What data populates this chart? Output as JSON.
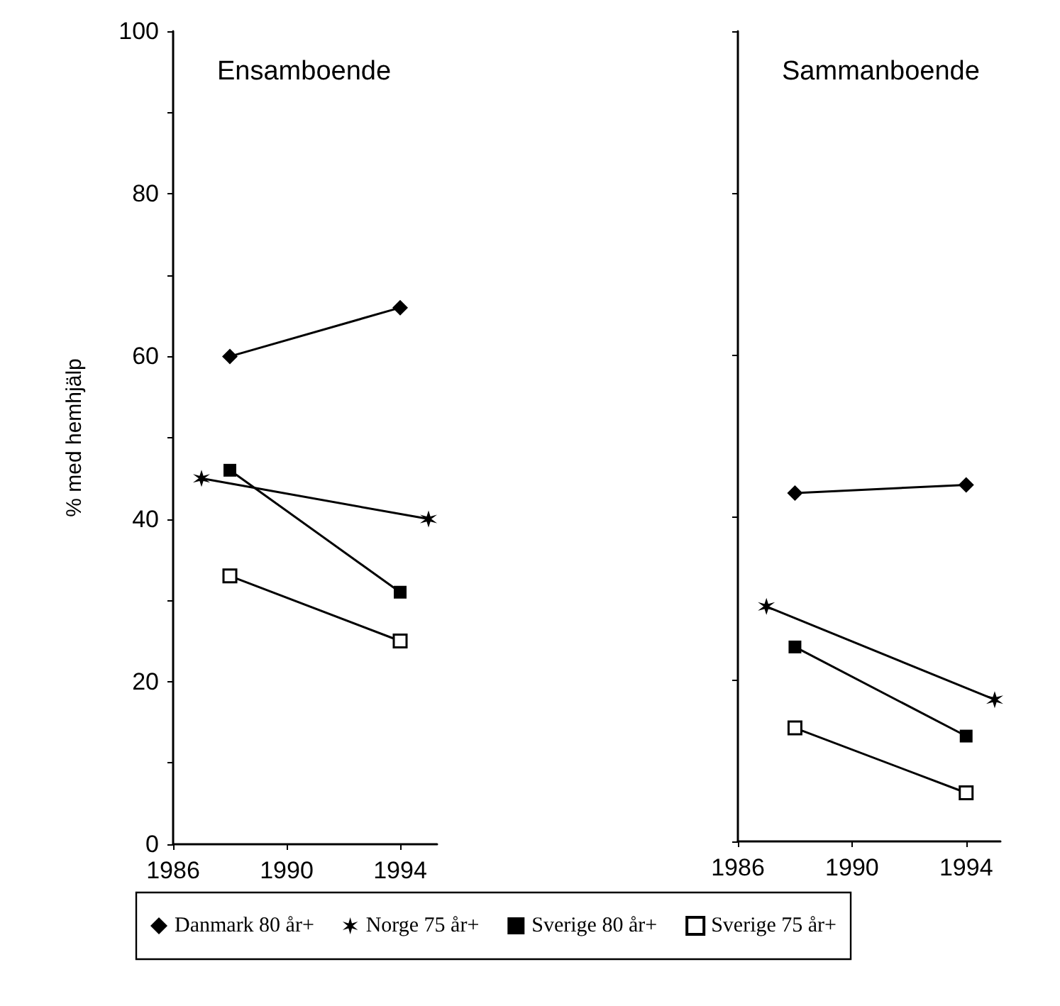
{
  "chart_data": [
    {
      "type": "line",
      "title": "Ensamboende",
      "ylabel": "% med hemhjälp",
      "xlim": [
        1986,
        1995.3
      ],
      "xticks": [
        1986,
        1990,
        1994
      ],
      "ylim": [
        0,
        100
      ],
      "yticks": [
        0,
        {
          "value": 10,
          "label": null
        },
        20,
        {
          "value": 30,
          "label": null
        },
        40,
        {
          "value": 50,
          "label": null
        },
        60,
        {
          "value": 70,
          "label": null
        },
        80,
        {
          "value": 90,
          "label": null
        },
        100
      ],
      "grid": false,
      "legend": "bottom",
      "line_style": "solid",
      "series": [
        {
          "name": "Danmark 80 år+",
          "color": "#000000",
          "marker": "diamond",
          "x": [
            1988,
            1994
          ],
          "values": [
            60,
            66
          ]
        },
        {
          "name": "Norge 75 år+",
          "color": "#000000",
          "marker": "cross",
          "x": [
            1987,
            1995
          ],
          "values": [
            45,
            40
          ]
        },
        {
          "name": "Sverige 80 år+",
          "color": "#000000",
          "marker": "square",
          "x": [
            1988,
            1994
          ],
          "values": [
            46,
            31
          ]
        },
        {
          "name": "Sverige 75 år+",
          "color": "#000000",
          "colors": [
            "#ffffff",
            "#ffffff"
          ],
          "marker": "square",
          "x": [
            1988,
            1994
          ],
          "values": [
            33,
            25
          ]
        }
      ]
    },
    {
      "type": "line",
      "title": "Sammanboende",
      "xlim": [
        1986,
        1995.2
      ],
      "xticks": [
        1986,
        1990,
        1994
      ],
      "ylim": [
        0,
        100
      ],
      "yticks": [
        0,
        20,
        40,
        60,
        80,
        100
      ],
      "tick_labels": "x",
      "grid": false,
      "line_style": "solid",
      "series": [
        {
          "color": "#000000",
          "marker": "diamond",
          "x": [
            1988,
            1994
          ],
          "values": [
            43,
            44
          ]
        },
        {
          "color": "#000000",
          "marker": "cross",
          "x": [
            1987,
            1995
          ],
          "values": [
            29,
            17.5
          ]
        },
        {
          "color": "#000000",
          "marker": "square",
          "x": [
            1988,
            1994
          ],
          "values": [
            24,
            13
          ]
        },
        {
          "color": "#000000",
          "colors": [
            "#ffffff",
            "#ffffff"
          ],
          "marker": "square",
          "x": [
            1988,
            1994
          ],
          "values": [
            14,
            6
          ]
        }
      ]
    }
  ]
}
